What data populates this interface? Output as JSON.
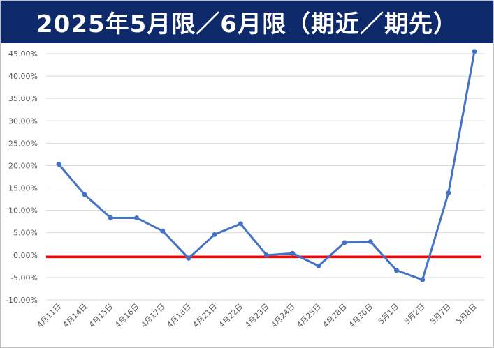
{
  "chart_data": {
    "type": "line",
    "title": "2025年5月限／6月限（期近／期先）",
    "categories": [
      "4月11日",
      "4月14日",
      "4月15日",
      "4月16日",
      "4月17日",
      "4月18日",
      "4月21日",
      "4月22日",
      "4月23日",
      "4月24日",
      "4月25日",
      "4月28日",
      "4月30日",
      "5月1日",
      "5月2日",
      "5月7日",
      "5月8日"
    ],
    "series": [
      {
        "values": [
          20.3,
          13.5,
          8.3,
          8.3,
          5.4,
          -0.7,
          4.6,
          7.0,
          0.0,
          0.4,
          -2.4,
          2.8,
          3.0,
          -3.4,
          -5.5,
          13.9,
          45.5
        ]
      }
    ],
    "reference_line": {
      "value": -0.4,
      "color": "#ff0000"
    },
    "y_ticks": [
      "45.00%",
      "40.00%",
      "35.00%",
      "30.00%",
      "25.00%",
      "20.00%",
      "15.00%",
      "10.00%",
      "5.00%",
      "0.00%",
      "-5.00%",
      "-10.00%"
    ],
    "ylim": [
      -10,
      45
    ],
    "grid": true,
    "colors": {
      "series": "#4472c4",
      "title_bg": "#0f2a6b",
      "grid": "#d9d9d9"
    }
  }
}
